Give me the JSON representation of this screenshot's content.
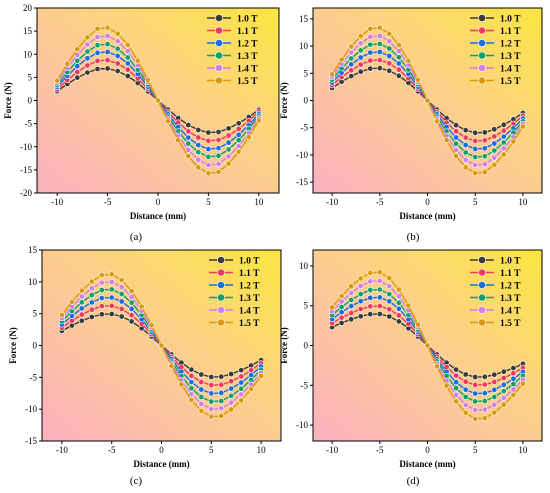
{
  "figure": {
    "series_names": [
      "1.0 T",
      "1.1 T",
      "1.2 T",
      "1.3 T",
      "1.4 T",
      "1.5 T"
    ],
    "series_colors": [
      "#3a3a3a",
      "#f0385a",
      "#1a6be6",
      "#0fa06a",
      "#d27ee6",
      "#d99a08"
    ],
    "gradient_colors": {
      "bottom_left": "#fbb0c0",
      "top_right": "#fbe640"
    }
  },
  "chart_data": [
    {
      "type": "line",
      "panel": "a",
      "caption": "(a)",
      "xlabel": "Distance (mm)",
      "ylabel": "Force (N)",
      "xlim": [
        -12,
        12
      ],
      "ylim": [
        -20,
        20
      ],
      "xticks": [
        -10,
        -5,
        0,
        5,
        10
      ],
      "yticks": [
        -20,
        -15,
        -10,
        -5,
        0,
        5,
        10,
        15,
        20
      ],
      "grid": false,
      "legend_position": "top-right",
      "x": [
        -10,
        -9,
        -8,
        -7,
        -6,
        -5,
        -4,
        -3,
        -2,
        -1,
        0,
        1,
        2,
        3,
        4,
        5,
        6,
        7,
        8,
        9,
        10
      ],
      "series": [
        {
          "name": "1.0 T",
          "peak_value": 7.0,
          "end_value": 2.0
        },
        {
          "name": "1.1 T",
          "peak_value": 8.8,
          "end_value": 2.4
        },
        {
          "name": "1.2 T",
          "peak_value": 10.6,
          "end_value": 2.9
        },
        {
          "name": "1.3 T",
          "peak_value": 12.3,
          "end_value": 3.3
        },
        {
          "name": "1.4 T",
          "peak_value": 14.1,
          "end_value": 3.8
        },
        {
          "name": "1.5 T",
          "peak_value": 15.9,
          "end_value": 4.3
        }
      ]
    },
    {
      "type": "line",
      "panel": "b",
      "caption": "(b)",
      "xlabel": "Distance (mm)",
      "ylabel": "Force (N)",
      "xlim": [
        -12,
        12
      ],
      "ylim": [
        -17,
        17
      ],
      "xticks": [
        -10,
        -5,
        0,
        5,
        10
      ],
      "yticks": [
        -15,
        -10,
        -5,
        0,
        5,
        10,
        15
      ],
      "grid": false,
      "legend_position": "top-right",
      "x": [
        -10,
        -9,
        -8,
        -7,
        -6,
        -5,
        -4,
        -3,
        -2,
        -1,
        0,
        1,
        2,
        3,
        4,
        5,
        6,
        7,
        8,
        9,
        10
      ],
      "series": [
        {
          "name": "1.0 T",
          "peak_value": 6.0,
          "end_value": 2.3
        },
        {
          "name": "1.1 T",
          "peak_value": 7.5,
          "end_value": 2.8
        },
        {
          "name": "1.2 T",
          "peak_value": 9.0,
          "end_value": 3.3
        },
        {
          "name": "1.3 T",
          "peak_value": 10.5,
          "end_value": 3.8
        },
        {
          "name": "1.4 T",
          "peak_value": 12.0,
          "end_value": 4.3
        },
        {
          "name": "1.5 T",
          "peak_value": 13.5,
          "end_value": 4.8
        }
      ]
    },
    {
      "type": "line",
      "panel": "c",
      "caption": "(c)",
      "xlabel": "Distance (mm)",
      "ylabel": "Force (N)",
      "xlim": [
        -12,
        12
      ],
      "ylim": [
        -15,
        15
      ],
      "xticks": [
        -10,
        -5,
        0,
        5,
        10
      ],
      "yticks": [
        -15,
        -10,
        -5,
        0,
        5,
        10,
        15
      ],
      "grid": false,
      "legend_position": "top-right",
      "x": [
        -10,
        -9,
        -8,
        -7,
        -6,
        -5,
        -4,
        -3,
        -2,
        -1,
        0,
        1,
        2,
        3,
        4,
        5,
        6,
        7,
        8,
        9,
        10
      ],
      "series": [
        {
          "name": "1.0 T",
          "peak_value": 5.0,
          "end_value": 2.3
        },
        {
          "name": "1.1 T",
          "peak_value": 6.3,
          "end_value": 2.8
        },
        {
          "name": "1.2 T",
          "peak_value": 7.6,
          "end_value": 3.3
        },
        {
          "name": "1.3 T",
          "peak_value": 8.9,
          "end_value": 3.8
        },
        {
          "name": "1.4 T",
          "peak_value": 10.1,
          "end_value": 4.3
        },
        {
          "name": "1.5 T",
          "peak_value": 11.3,
          "end_value": 4.8
        }
      ]
    },
    {
      "type": "line",
      "panel": "d",
      "caption": "(d)",
      "xlabel": "Distance (mm)",
      "ylabel": "Force (N)",
      "xlim": [
        -12,
        12
      ],
      "ylim": [
        -12,
        12
      ],
      "xticks": [
        -10,
        -5,
        0,
        5,
        10
      ],
      "yticks": [
        -10,
        -5,
        0,
        5,
        10
      ],
      "grid": false,
      "legend_position": "top-right",
      "x": [
        -10,
        -9,
        -8,
        -7,
        -6,
        -5,
        -4,
        -3,
        -2,
        -1,
        0,
        1,
        2,
        3,
        4,
        5,
        6,
        7,
        8,
        9,
        10
      ],
      "series": [
        {
          "name": "1.0 T",
          "peak_value": 4.0,
          "end_value": 2.3
        },
        {
          "name": "1.1 T",
          "peak_value": 5.0,
          "end_value": 2.8
        },
        {
          "name": "1.2 T",
          "peak_value": 6.1,
          "end_value": 3.3
        },
        {
          "name": "1.3 T",
          "peak_value": 7.1,
          "end_value": 3.8
        },
        {
          "name": "1.4 T",
          "peak_value": 8.2,
          "end_value": 4.3
        },
        {
          "name": "1.5 T",
          "peak_value": 9.3,
          "end_value": 4.8
        }
      ]
    }
  ]
}
